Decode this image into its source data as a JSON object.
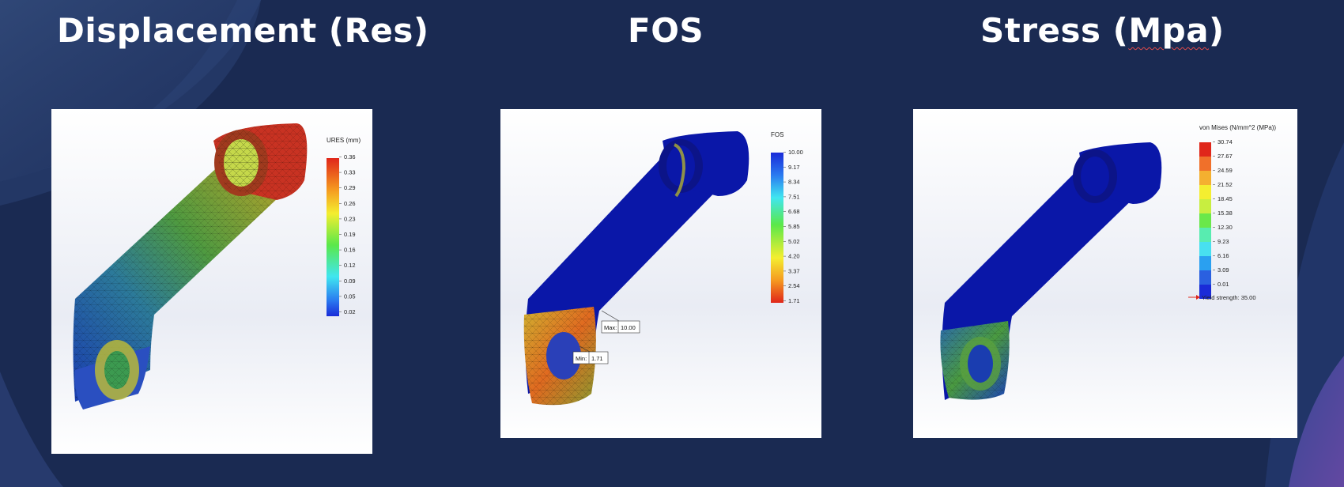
{
  "titles": {
    "displacement_prefix": "Displacement (Res)",
    "fos": "FOS",
    "stress_prefix": "Stress (",
    "stress_unit": "Mpa",
    "stress_suffix": ")"
  },
  "displacement": {
    "legend_title": "URES (mm)",
    "values": [
      "0.36",
      "0.33",
      "0.29",
      "0.26",
      "0.23",
      "0.19",
      "0.16",
      "0.12",
      "0.09",
      "0.05",
      "0.02"
    ]
  },
  "fos": {
    "legend_title": "FOS",
    "values": [
      "10.00",
      "9.17",
      "8.34",
      "7.51",
      "6.68",
      "5.85",
      "5.02",
      "4.20",
      "3.37",
      "2.54",
      "1.71"
    ],
    "max_label": "Max:",
    "max_value": "10.00",
    "min_label": "Min:",
    "min_value": "1.71"
  },
  "stress": {
    "legend_title": "von Mises (N/mm^2 (MPa))",
    "values": [
      "30.74",
      "27.67",
      "24.59",
      "21.52",
      "18.45",
      "15.38",
      "12.30",
      "9.23",
      "6.16",
      "3.09",
      "0.01"
    ],
    "yield_label": "Yield strength: 35.00"
  },
  "colors": {
    "background": "#1a2a52",
    "part_blue": "#0a17a8",
    "legend_red": "#e03a1e",
    "legend_blue": "#1a2bd8"
  }
}
